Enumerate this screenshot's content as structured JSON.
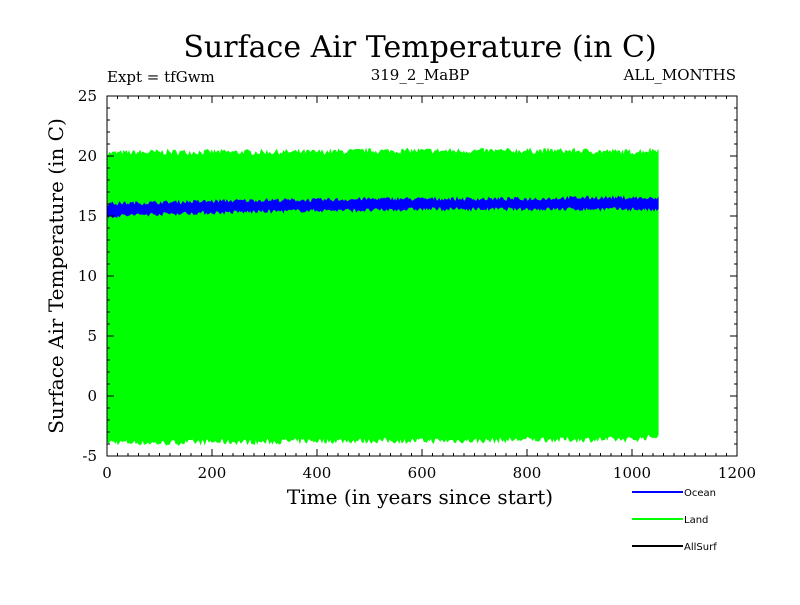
{
  "chart_data": {
    "type": "line",
    "title": "Surface Air Temperature (in C)",
    "subtitle_left": "Expt = tfGwm",
    "subtitle_center": "319_2_MaBP",
    "subtitle_right": "ALL_MONTHS",
    "xlabel": "Time (in years since start)",
    "ylabel": "Surface Air Temperature (in C)",
    "xlim": [
      0,
      1200
    ],
    "ylim": [
      -5,
      25
    ],
    "x_ticks": [
      0,
      200,
      400,
      600,
      800,
      1000,
      1200
    ],
    "y_ticks": [
      -5,
      0,
      5,
      10,
      15,
      20,
      25
    ],
    "x_tick_labels": [
      "0",
      "200",
      "400",
      "600",
      "800",
      "1000",
      "1200"
    ],
    "y_tick_labels": [
      "-5",
      "0",
      "5",
      "10",
      "15",
      "20",
      "25"
    ],
    "data_x_range": [
      0,
      1050
    ],
    "series": [
      {
        "name": "Land",
        "color": "#00ff00",
        "kind": "seasonal-band",
        "x": [
          0,
          100,
          200,
          300,
          400,
          500,
          600,
          700,
          800,
          900,
          1000,
          1050
        ],
        "upper": [
          20.2,
          20.3,
          20.3,
          20.3,
          20.3,
          20.4,
          20.4,
          20.4,
          20.4,
          20.4,
          20.3,
          20.5
        ],
        "lower": [
          -3.8,
          -3.9,
          -3.8,
          -3.8,
          -3.7,
          -3.7,
          -3.7,
          -3.7,
          -3.6,
          -3.6,
          -3.6,
          -3.3
        ]
      },
      {
        "name": "Ocean",
        "color": "#0000ff",
        "kind": "seasonal-band",
        "x": [
          0,
          100,
          200,
          300,
          400,
          500,
          600,
          700,
          800,
          900,
          1000,
          1050
        ],
        "upper": [
          16.0,
          16.1,
          16.2,
          16.3,
          16.3,
          16.4,
          16.4,
          16.4,
          16.4,
          16.5,
          16.5,
          16.4
        ],
        "lower": [
          15.0,
          15.2,
          15.3,
          15.4,
          15.5,
          15.5,
          15.6,
          15.6,
          15.6,
          15.6,
          15.6,
          15.5
        ]
      },
      {
        "name": "AllSurf",
        "color": "#000000",
        "kind": "legend-only",
        "x": [],
        "values": []
      }
    ],
    "legend": [
      "Ocean",
      "Land",
      "AllSurf"
    ],
    "legend_placement": "bottom-right"
  }
}
